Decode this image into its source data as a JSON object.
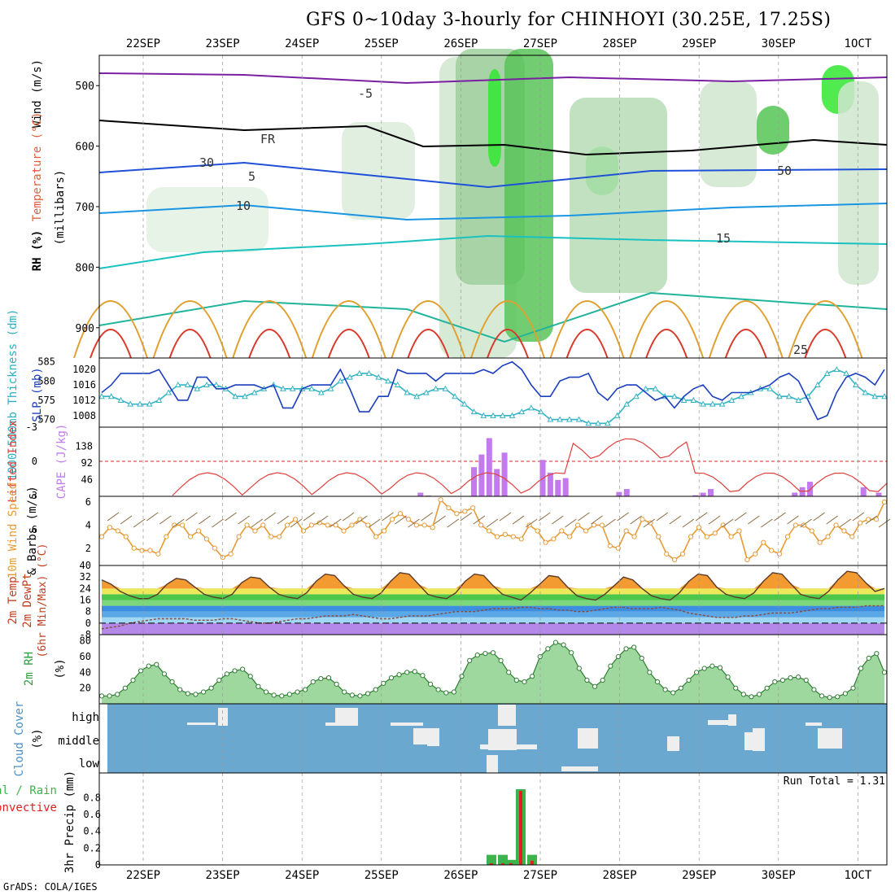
{
  "title": "GFS 0~10day 3-hourly for CHINHOYI (30.25E, 17.25S)",
  "footer": "GrADS: COLA/IGES",
  "colors": {
    "axis": "#000000",
    "grid": "#999999",
    "slp": "#1b3fbf",
    "thickness": "#33b3c4",
    "lifted_index": "#e0403c",
    "cape": "#c27aee",
    "wind10": "#e79a36",
    "rh_fill": "#5dbd5f",
    "cloud_bg": "#6aa8d0",
    "cloud_fill": "#eeeeee",
    "precip_total": "#3cb44b",
    "precip_conv": "#e02020",
    "temp_red": "#d92a20",
    "temp_orange": "#f39a31",
    "temp_green": "#4cc74c",
    "temp_blue": "#3d8ee0",
    "temp_purple": "#b388e8"
  },
  "chart_data": [
    {
      "panel": "upper_air",
      "type": "heatmap",
      "ylabels": [
        "Wind (m/s)",
        "Temperature (°C)",
        "RH (%)",
        "(millibars)"
      ],
      "y_ticks": [
        500,
        600,
        700,
        800,
        900
      ],
      "annotations": [
        "FR",
        "-5",
        "5",
        "10",
        "15",
        "25",
        "30",
        "50"
      ]
    },
    {
      "panel": "slp_thickness",
      "type": "line",
      "ylabels": [
        "1000-500mb Thickness (dm)",
        "SLP (mb)"
      ],
      "left_ticks": [
        570,
        575,
        580,
        585
      ],
      "right_ticks": [
        1008,
        1012,
        1016,
        1020
      ],
      "series": [
        {
          "name": "SLP",
          "values": [
            1014,
            1016,
            1019,
            1019,
            1019,
            1019,
            1020,
            1016,
            1012,
            1012,
            1018,
            1018,
            1015,
            1015,
            1016,
            1016,
            1016,
            1015,
            1016,
            1010,
            1010,
            1015,
            1016,
            1016,
            1016,
            1020,
            1015,
            1009,
            1009,
            1013,
            1013,
            1020,
            1019,
            1019,
            1019,
            1017,
            1019,
            1019,
            1019,
            1019,
            1020,
            1019,
            1021,
            1022,
            1020,
            1016,
            1013,
            1013,
            1017,
            1018,
            1018,
            1019,
            1014,
            1012,
            1015,
            1016,
            1016,
            1014,
            1012,
            1013,
            1010,
            1013,
            1015,
            1016,
            1013,
            1012,
            1014,
            1014,
            1014,
            1015,
            1016,
            1018,
            1019,
            1017,
            1012,
            1007,
            1008,
            1014,
            1018,
            1019,
            1018,
            1016,
            1020
          ]
        },
        {
          "name": "Thickness",
          "values": [
            576,
            576,
            575,
            574,
            574,
            574,
            575,
            577,
            579,
            579,
            578,
            579,
            579,
            578,
            576,
            576,
            577,
            578,
            579,
            578,
            578,
            578,
            578,
            577,
            578,
            580,
            581,
            582,
            582,
            581,
            580,
            579,
            577,
            576,
            577,
            578,
            578,
            576,
            574,
            572,
            571,
            571,
            571,
            571,
            572,
            573,
            572,
            570,
            570,
            570,
            570,
            569,
            569,
            569,
            571,
            574,
            576,
            578,
            578,
            576,
            576,
            575,
            575,
            574,
            574,
            574,
            575,
            576,
            577,
            578,
            578,
            576,
            576,
            575,
            576,
            579,
            582,
            583,
            582,
            579,
            577,
            576,
            576
          ]
        }
      ]
    },
    {
      "panel": "instability",
      "type": "bar",
      "ylabels": [
        "Lifted Index",
        "CAPE (J/kg)"
      ],
      "left_ticks": [
        -3,
        0,
        3,
        6
      ],
      "right_ticks": [
        46,
        92,
        138
      ],
      "cape": [
        0,
        0,
        0,
        0,
        0,
        0,
        0,
        0,
        0,
        0,
        0,
        0,
        0,
        0,
        0,
        0,
        0,
        0,
        0,
        0,
        0,
        0,
        0,
        0,
        0,
        0,
        0,
        0,
        0,
        0,
        0,
        0,
        0,
        0,
        0,
        0,
        0,
        0,
        0,
        0,
        0,
        10,
        2,
        0,
        0,
        0,
        0,
        0,
        80,
        115,
        160,
        75,
        120,
        0,
        0,
        0,
        0,
        100,
        65,
        45,
        50,
        0,
        0,
        0,
        0,
        0,
        0,
        12,
        20,
        0,
        0,
        0,
        0,
        0,
        0,
        0,
        0,
        3,
        10,
        20,
        0,
        0,
        0,
        0,
        0,
        0,
        0,
        0,
        0,
        0,
        10,
        25,
        40,
        0,
        0,
        0,
        0,
        0,
        0,
        25,
        0,
        10
      ]
    },
    {
      "panel": "wind10m",
      "type": "line",
      "ylabels": [
        "10m Wind Speed",
        "& Barbs (m/s)"
      ],
      "y_ticks": [
        2,
        4,
        6
      ],
      "series": [
        {
          "name": "10m Wind Speed",
          "values": [
            3,
            3.8,
            3.5,
            3,
            2,
            1.8,
            1.8,
            1.5,
            3,
            4,
            4,
            3,
            3.5,
            2.8,
            2,
            1.2,
            1.5,
            3,
            4,
            3.5,
            4,
            3,
            3,
            4,
            4.5,
            3.5,
            4,
            4.2,
            4,
            4,
            3.5,
            4,
            4.5,
            4,
            3,
            3.5,
            4.5,
            5,
            4.5,
            4,
            4,
            3.8,
            6.2,
            5.5,
            5,
            5.2,
            5.5,
            4,
            3.5,
            3,
            3.2,
            3,
            2.8,
            4,
            3.5,
            2.5,
            2.8,
            3.5,
            3,
            4,
            3.5,
            4,
            4,
            2.2,
            2,
            3.5,
            3,
            4.5,
            4.2,
            3,
            1.5,
            1,
            1.5,
            3,
            3.8,
            3,
            3.3,
            4,
            3,
            3.5,
            1,
            1.5,
            2.5,
            1.8,
            1.5,
            3,
            4,
            4,
            3.5,
            2.5,
            3,
            4,
            3.5,
            3,
            4.2,
            4.5,
            4.5,
            6
          ]
        }
      ]
    },
    {
      "panel": "temperature",
      "type": "area",
      "ylabels": [
        "2m Temp",
        "2m DewPt",
        "(6hr Min/Max) (°C)"
      ],
      "y_ticks": [
        -8,
        0,
        8,
        16,
        24,
        32,
        40
      ],
      "series": [
        {
          "name": "2m Temp",
          "values": [
            30,
            27,
            22,
            19,
            17,
            17,
            20,
            27,
            31,
            30,
            25,
            20,
            18,
            17,
            20,
            28,
            32,
            31,
            25,
            20,
            18,
            17,
            21,
            29,
            34,
            33,
            26,
            20,
            18,
            17,
            21,
            29,
            35,
            34,
            27,
            20,
            18,
            17,
            21,
            29,
            34,
            33,
            26,
            20,
            18,
            16,
            21,
            27,
            33,
            32,
            25,
            19,
            17,
            16,
            20,
            26,
            32,
            30,
            24,
            19,
            17,
            16,
            21,
            29,
            34,
            33,
            25,
            20,
            18,
            17,
            21,
            29,
            35,
            34,
            27,
            20,
            18,
            17,
            22,
            30,
            36,
            35,
            28,
            22,
            24
          ]
        },
        {
          "name": "2m DewPt",
          "values": [
            -4,
            -3,
            -2,
            0,
            1,
            2,
            3,
            3,
            3,
            3,
            2,
            2,
            2,
            3,
            3,
            2,
            1,
            0,
            0,
            1,
            2,
            3,
            3,
            4,
            5,
            5,
            5,
            6,
            5,
            4,
            3,
            3,
            4,
            5,
            5,
            5,
            6,
            7,
            8,
            8,
            8,
            9,
            10,
            10,
            10,
            11,
            11,
            10,
            10,
            9,
            9,
            8,
            8,
            9,
            10,
            11,
            11,
            10,
            10,
            10,
            11,
            10,
            9,
            7,
            6,
            5,
            4,
            4,
            4,
            5,
            5,
            6,
            7,
            7,
            7,
            8,
            9,
            10,
            10,
            11,
            11,
            11,
            12,
            12,
            12
          ]
        }
      ]
    },
    {
      "panel": "rh2m",
      "type": "area",
      "ylabels": [
        "2m RH",
        "(%)"
      ],
      "y_ticks": [
        20,
        40,
        60,
        80
      ],
      "series": [
        {
          "name": "2m RH",
          "values": [
            10,
            10,
            12,
            20,
            30,
            42,
            48,
            50,
            38,
            28,
            18,
            13,
            12,
            15,
            20,
            30,
            38,
            42,
            44,
            35,
            22,
            15,
            11,
            10,
            12,
            15,
            18,
            28,
            32,
            33,
            25,
            15,
            11,
            10,
            13,
            18,
            26,
            33,
            37,
            40,
            41,
            36,
            25,
            18,
            14,
            15,
            35,
            55,
            62,
            64,
            65,
            55,
            40,
            30,
            28,
            35,
            60,
            70,
            78,
            75,
            65,
            45,
            30,
            22,
            30,
            48,
            60,
            70,
            72,
            58,
            40,
            28,
            18,
            14,
            20,
            30,
            40,
            45,
            48,
            46,
            34,
            20,
            12,
            9,
            12,
            20,
            28,
            30,
            33,
            34,
            30,
            18,
            10,
            8,
            9,
            13,
            20,
            45,
            58,
            64,
            40
          ]
        }
      ]
    },
    {
      "panel": "cloud",
      "type": "bar",
      "ylabels": [
        "Cloud Cover",
        "(%)"
      ],
      "y_ticks": [
        "low",
        "middle",
        "high"
      ]
    },
    {
      "panel": "precip",
      "type": "bar",
      "ylabels": [
        "Total / Rain",
        "Convective",
        "3hr Precip (mm)"
      ],
      "y_ticks": [
        0,
        0.2,
        0.4,
        0.6,
        0.8
      ],
      "run_total_label": "Run Total = 1.31",
      "series": [
        {
          "name": "Total / Rain",
          "values": [
            0.12,
            0.12,
            0.06,
            0.9,
            0.12
          ]
        },
        {
          "name": "Convective",
          "values": [
            0.02,
            0.02,
            0.02,
            0.88,
            0.05
          ]
        }
      ]
    }
  ],
  "x_ticks": [
    "22SEP",
    "23SEP",
    "24SEP",
    "25SEP",
    "26SEP",
    "27SEP",
    "28SEP",
    "29SEP",
    "30SEP",
    "1OCT"
  ]
}
